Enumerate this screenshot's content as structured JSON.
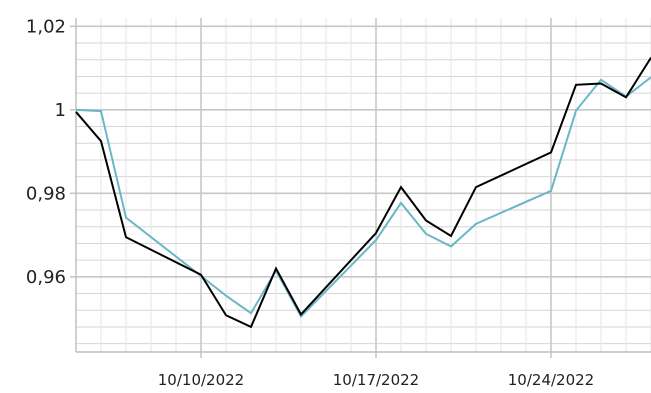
{
  "chart_data": {
    "type": "line",
    "title": "",
    "xlabel": "",
    "ylabel": "",
    "x_axis": {
      "range": [
        "2022-10-05",
        "2022-10-28"
      ],
      "tick_values": [
        "2022-10-10",
        "2022-10-17",
        "2022-10-24"
      ],
      "tick_labels": [
        "10/10/2022",
        "10/17/2022",
        "10/24/2022"
      ],
      "minor_grid": "daily"
    },
    "y_axis": {
      "range": [
        0.942,
        1.022
      ],
      "tick_values": [
        0.96,
        0.98,
        1.0,
        1.02
      ],
      "tick_labels": [
        "0,96",
        "0,98",
        "1",
        "1,02"
      ],
      "minor_step": 0.004
    },
    "grid": true,
    "legend": "none",
    "series": [
      {
        "color": "#000000",
        "points": [
          [
            "2022-10-05",
            0.9995
          ],
          [
            "2022-10-06",
            0.9925
          ],
          [
            "2022-10-07",
            0.9695
          ],
          [
            "2022-10-10",
            0.9605
          ],
          [
            "2022-10-11",
            0.9508
          ],
          [
            "2022-10-12",
            0.948
          ],
          [
            "2022-10-13",
            0.962
          ],
          [
            "2022-10-14",
            0.951
          ],
          [
            "2022-10-17",
            0.9705
          ],
          [
            "2022-10-18",
            0.9815
          ],
          [
            "2022-10-19",
            0.9735
          ],
          [
            "2022-10-20",
            0.9698
          ],
          [
            "2022-10-21",
            0.9815
          ],
          [
            "2022-10-24",
            0.9898
          ],
          [
            "2022-10-25",
            1.006
          ],
          [
            "2022-10-26",
            1.0063
          ],
          [
            "2022-10-27",
            1.003
          ],
          [
            "2022-10-28",
            1.0125
          ]
        ]
      },
      {
        "color": "#6ab7c6",
        "points": [
          [
            "2022-10-05",
            1.0
          ],
          [
            "2022-10-06",
            0.9997
          ],
          [
            "2022-10-07",
            0.9742
          ],
          [
            "2022-10-10",
            0.9602
          ],
          [
            "2022-10-11",
            0.9555
          ],
          [
            "2022-10-12",
            0.9513
          ],
          [
            "2022-10-13",
            0.9615
          ],
          [
            "2022-10-14",
            0.9505
          ],
          [
            "2022-10-17",
            0.9688
          ],
          [
            "2022-10-18",
            0.9777
          ],
          [
            "2022-10-19",
            0.9703
          ],
          [
            "2022-10-20",
            0.9673
          ],
          [
            "2022-10-21",
            0.9727
          ],
          [
            "2022-10-24",
            0.9806
          ],
          [
            "2022-10-25",
            0.9998
          ],
          [
            "2022-10-26",
            1.0072
          ],
          [
            "2022-10-27",
            1.0032
          ],
          [
            "2022-10-28",
            1.0078
          ]
        ]
      }
    ]
  }
}
